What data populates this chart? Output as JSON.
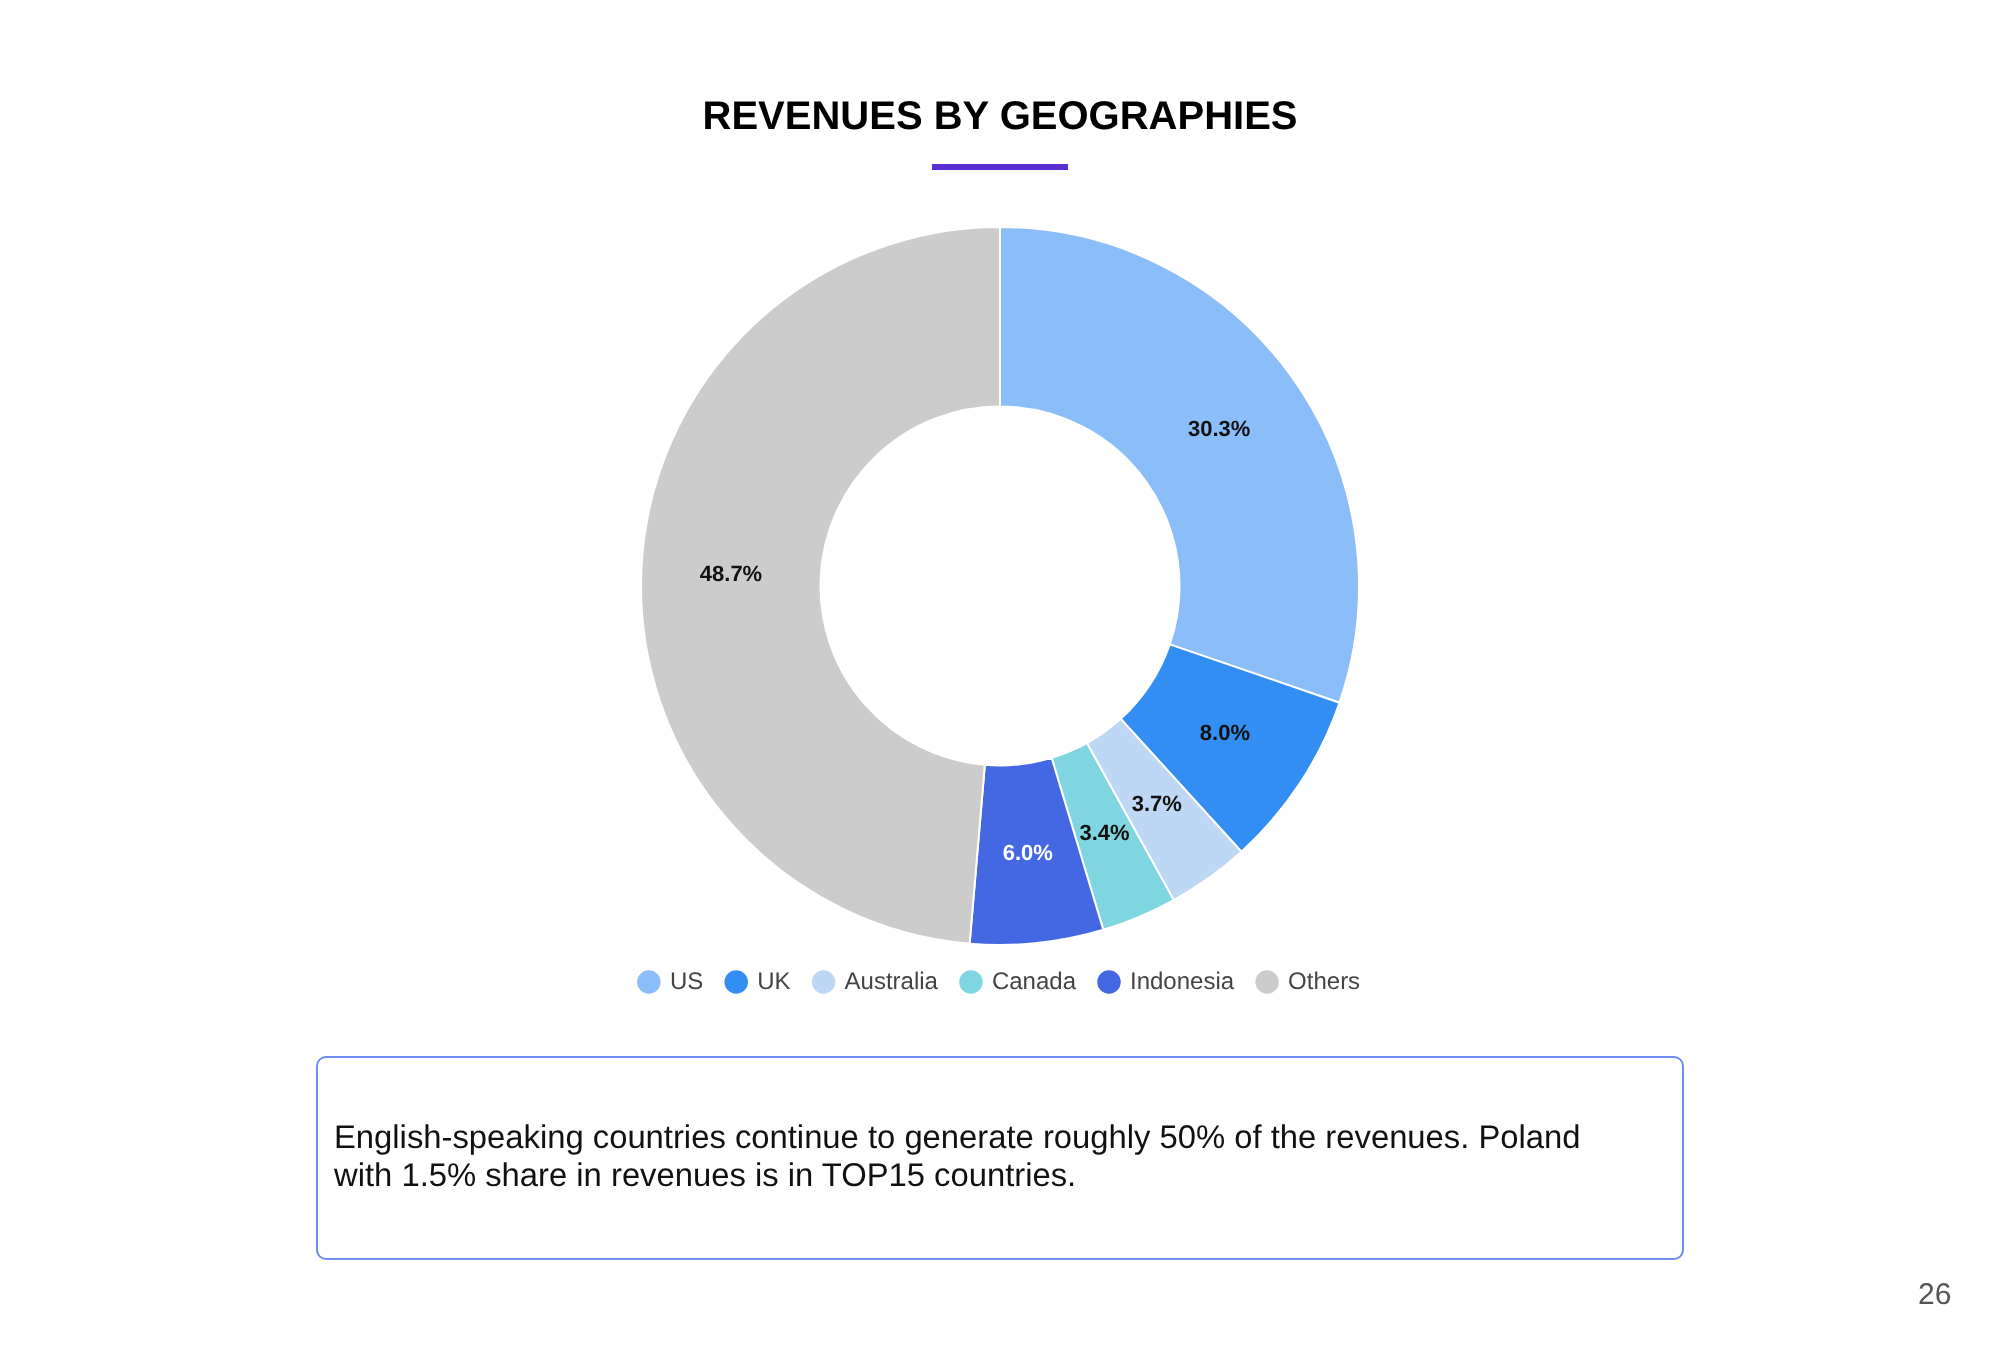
{
  "chart_data": {
    "type": "donut",
    "title": "REVENUES BY GEOGRAPHIES",
    "categories": [
      "US",
      "UK",
      "Australia",
      "Canada",
      "Indonesia",
      "Others"
    ],
    "values": [
      30.3,
      8.0,
      3.7,
      3.4,
      6.0,
      48.7
    ],
    "colors": [
      "#8bbdf9",
      "#338ef3",
      "#bdd7f5",
      "#7fd6e0",
      "#4467e2",
      "#cccccc"
    ],
    "value_labels": [
      "30.3%",
      "8.0%",
      "3.7%",
      "3.4%",
      "6.0%",
      "48.7%"
    ],
    "legend": "bottom",
    "annotations": [
      "English-speaking countries continue to generate roughly 50% of the revenues. Poland with 1.5% share in revenues is in TOP15 countries.",
      "26"
    ]
  }
}
